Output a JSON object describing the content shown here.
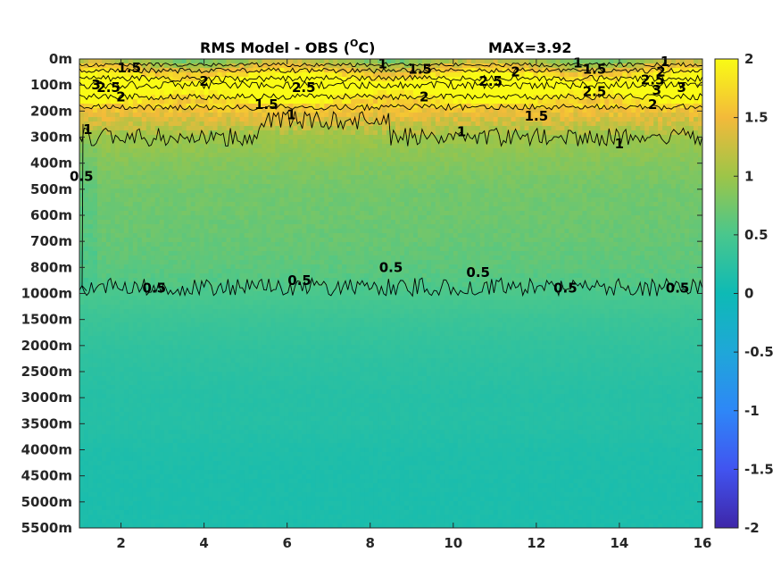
{
  "chart_data": {
    "type": "heatmap",
    "title": "RMS Model - OBS (",
    "title_unit": "O",
    "title_unit_suffix": "C)",
    "title_max": "MAX=3.92",
    "xlabel": "",
    "ylabel": "",
    "xlim": [
      1,
      16
    ],
    "x_ticks": [
      "2",
      "4",
      "6",
      "8",
      "10",
      "12",
      "14",
      "16"
    ],
    "x_tick_values": [
      2,
      4,
      6,
      8,
      10,
      12,
      14,
      16
    ],
    "y_tick_labels": [
      "0m",
      "100m",
      "200m",
      "300m",
      "400m",
      "500m",
      "600m",
      "700m",
      "800m",
      "1000m",
      "1500m",
      "2000m",
      "2500m",
      "3000m",
      "3500m",
      "4000m",
      "4500m",
      "5000m",
      "5500m"
    ],
    "colorbar": {
      "range": [
        -2,
        2
      ],
      "tick_labels": [
        "2",
        "1.5",
        "1",
        "0.5",
        "0",
        "-0.5",
        "-1",
        "-1.5",
        "-2"
      ],
      "tick_values": [
        2,
        1.5,
        1,
        0.5,
        0,
        -0.5,
        -1,
        -1.5,
        -2
      ],
      "colormap": "parula"
    },
    "depth_profile": [
      {
        "depth": "0m",
        "value": 0.9
      },
      {
        "depth": "100m",
        "value": 2.4
      },
      {
        "depth": "200m",
        "value": 1.5
      },
      {
        "depth": "300m",
        "value": 1.0
      },
      {
        "depth": "400m",
        "value": 0.85
      },
      {
        "depth": "500m",
        "value": 0.75
      },
      {
        "depth": "600m",
        "value": 0.72
      },
      {
        "depth": "700m",
        "value": 0.68
      },
      {
        "depth": "800m",
        "value": 0.62
      },
      {
        "depth": "1000m",
        "value": 0.5
      },
      {
        "depth": "1500m",
        "value": 0.38
      },
      {
        "depth": "2000m",
        "value": 0.3
      },
      {
        "depth": "2500m",
        "value": 0.25
      },
      {
        "depth": "3000m",
        "value": 0.2
      },
      {
        "depth": "3500m",
        "value": 0.2
      },
      {
        "depth": "4000m",
        "value": 0.15
      },
      {
        "depth": "4500m",
        "value": 0.13
      },
      {
        "depth": "5000m",
        "value": 0.12
      },
      {
        "depth": "5500m",
        "value": 0.12
      }
    ],
    "contour_levels": [
      0.5,
      1,
      1.5,
      2,
      2.5,
      3
    ],
    "contour_labels": [
      {
        "text": "1.5",
        "x": 2.2,
        "depth_index": 0.35
      },
      {
        "text": "3",
        "x": 1.4,
        "depth_index": 1.0
      },
      {
        "text": "2.5",
        "x": 1.7,
        "depth_index": 1.1
      },
      {
        "text": "2",
        "x": 2.0,
        "depth_index": 1.45
      },
      {
        "text": "2",
        "x": 4.0,
        "depth_index": 0.85
      },
      {
        "text": "2.5",
        "x": 6.4,
        "depth_index": 1.1
      },
      {
        "text": "1",
        "x": 8.3,
        "depth_index": 0.18
      },
      {
        "text": "1.5",
        "x": 9.2,
        "depth_index": 0.4
      },
      {
        "text": "2.5",
        "x": 10.9,
        "depth_index": 0.85
      },
      {
        "text": "2",
        "x": 11.5,
        "depth_index": 0.5
      },
      {
        "text": "2",
        "x": 9.3,
        "depth_index": 1.45
      },
      {
        "text": "1.5",
        "x": 5.5,
        "depth_index": 1.75
      },
      {
        "text": "1",
        "x": 6.1,
        "depth_index": 2.15
      },
      {
        "text": "1",
        "x": 10.2,
        "depth_index": 2.8
      },
      {
        "text": "1.5",
        "x": 12.0,
        "depth_index": 2.2
      },
      {
        "text": "1",
        "x": 13.0,
        "depth_index": 0.15
      },
      {
        "text": "1.5",
        "x": 13.4,
        "depth_index": 0.4
      },
      {
        "text": "2.5",
        "x": 13.4,
        "depth_index": 1.25
      },
      {
        "text": "1",
        "x": 15.1,
        "depth_index": 0.1
      },
      {
        "text": "2",
        "x": 15.0,
        "depth_index": 0.5
      },
      {
        "text": "2.5",
        "x": 14.8,
        "depth_index": 0.8
      },
      {
        "text": "3",
        "x": 14.9,
        "depth_index": 1.2
      },
      {
        "text": "3",
        "x": 15.5,
        "depth_index": 1.1
      },
      {
        "text": "2",
        "x": 14.8,
        "depth_index": 1.75
      },
      {
        "text": "1",
        "x": 14.0,
        "depth_index": 3.25
      },
      {
        "text": "1",
        "x": 1.2,
        "depth_index": 2.7
      },
      {
        "text": "0.5",
        "x": 1.05,
        "depth_index": 4.5
      },
      {
        "text": "0.5",
        "x": 2.8,
        "depth_index": 8.8
      },
      {
        "text": "0.5",
        "x": 6.3,
        "depth_index": 8.5
      },
      {
        "text": "0.5",
        "x": 8.5,
        "depth_index": 8.0
      },
      {
        "text": "0.5",
        "x": 10.6,
        "depth_index": 8.2
      },
      {
        "text": "0.5",
        "x": 12.7,
        "depth_index": 8.8
      },
      {
        "text": "0.5",
        "x": 15.4,
        "depth_index": 8.8
      }
    ]
  }
}
